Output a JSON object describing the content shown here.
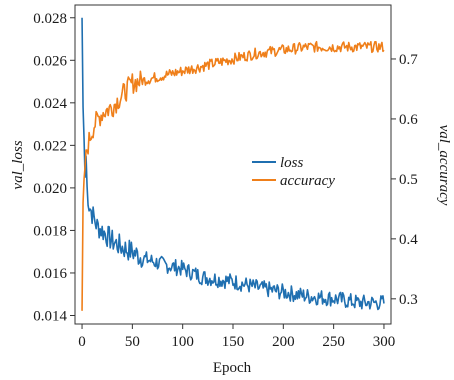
{
  "chart_data": {
    "type": "line",
    "xlabel": "Epoch",
    "ylabel_left": "val_loss",
    "ylabel_right": "val_accuracy",
    "xlim": [
      -7,
      307
    ],
    "ylim_left": [
      0.0136,
      0.0286
    ],
    "ylim_right": [
      0.258,
      0.79
    ],
    "x_ticks": [
      0,
      50,
      100,
      150,
      200,
      250,
      300
    ],
    "y_ticks_left": [
      0.014,
      0.016,
      0.018,
      0.02,
      0.022,
      0.024,
      0.026,
      0.028
    ],
    "y_ticks_left_labels": [
      "0.014",
      "0.016",
      "0.018",
      "0.020",
      "0.022",
      "0.024",
      "0.026",
      "0.028"
    ],
    "y_ticks_right": [
      0.3,
      0.4,
      0.5,
      0.6,
      0.7
    ],
    "y_ticks_right_labels": [
      "0.3",
      "0.4",
      "0.5",
      "0.6",
      "0.7"
    ],
    "grid": false,
    "legend_position": "center-right",
    "series": [
      {
        "name": "loss",
        "axis": "left",
        "color": "#1f6fb0",
        "points": [
          [
            0,
            0.028
          ],
          [
            1,
            0.0238
          ],
          [
            2,
            0.0223
          ],
          [
            3,
            0.0205
          ],
          [
            4,
            0.0215
          ],
          [
            5,
            0.02
          ],
          [
            7,
            0.0192
          ],
          [
            10,
            0.0188
          ],
          [
            15,
            0.0182
          ],
          [
            20,
            0.018
          ],
          [
            30,
            0.0175
          ],
          [
            40,
            0.0172
          ],
          [
            50,
            0.017
          ],
          [
            60,
            0.0167
          ],
          [
            80,
            0.0164
          ],
          [
            100,
            0.0162
          ],
          [
            120,
            0.0158
          ],
          [
            150,
            0.0156
          ],
          [
            175,
            0.0153
          ],
          [
            200,
            0.0151
          ],
          [
            225,
            0.0149
          ],
          [
            250,
            0.0148
          ],
          [
            275,
            0.0146
          ],
          [
            300,
            0.0146
          ]
        ]
      },
      {
        "name": "accuracy",
        "axis": "right",
        "color": "#ef7f1a",
        "points": [
          [
            0,
            0.28
          ],
          [
            1,
            0.46
          ],
          [
            2,
            0.5
          ],
          [
            3,
            0.52
          ],
          [
            5,
            0.55
          ],
          [
            8,
            0.57
          ],
          [
            12,
            0.59
          ],
          [
            20,
            0.61
          ],
          [
            30,
            0.62
          ],
          [
            40,
            0.64
          ],
          [
            50,
            0.66
          ],
          [
            75,
            0.67
          ],
          [
            100,
            0.68
          ],
          [
            125,
            0.69
          ],
          [
            150,
            0.7
          ],
          [
            175,
            0.71
          ],
          [
            200,
            0.715
          ],
          [
            225,
            0.72
          ],
          [
            250,
            0.72
          ],
          [
            275,
            0.72
          ],
          [
            300,
            0.72
          ]
        ]
      }
    ]
  }
}
